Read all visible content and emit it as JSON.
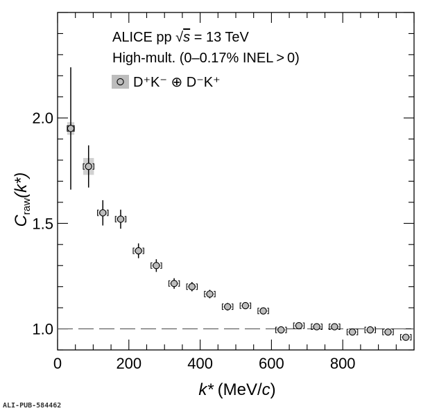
{
  "footer_id": "ALI-PUB-584462",
  "chart_data": {
    "type": "scatter",
    "title": "",
    "xlabel_var": "k*",
    "xlabel_unit_prefix": "(MeV/",
    "xlabel_unit_var": "c",
    "xlabel_unit_suffix": ")",
    "ylabel_var": "C",
    "ylabel_sub": "raw",
    "ylabel_arg": "(k*)",
    "xlim": [
      0,
      1000
    ],
    "ylim": [
      0.9,
      2.5
    ],
    "x_ticks": [
      0,
      200,
      400,
      600,
      800
    ],
    "x_tick_labels": [
      "0",
      "200",
      "400",
      "600",
      "800"
    ],
    "y_ticks": [
      1.0,
      1.5,
      2.0
    ],
    "y_tick_labels": [
      "1.0",
      "1.5",
      "2.0"
    ],
    "reference_line": 1.0,
    "grid": false,
    "annotations": {
      "line1_prefix": "ALICE pp ",
      "line1_sqrt": "s",
      "line1_suffix": " = 13 TeV",
      "line2": "High-mult. (0–0.17% INEL > 0)"
    },
    "legend": {
      "placement": "top-left",
      "entry": "D⁺K⁻ ⊕ D⁻K⁺"
    },
    "colors": {
      "marker_fill": "#bdbdbd",
      "marker_edge": "#000000",
      "syst_box": "#bdbdbd"
    },
    "series": [
      {
        "x": [
          37,
          87,
          127,
          177,
          227,
          277,
          327,
          377,
          427,
          477,
          527,
          577,
          627,
          677,
          727,
          777,
          827,
          877,
          927,
          977
        ],
        "y": [
          1.95,
          1.77,
          1.55,
          1.52,
          1.37,
          1.3,
          1.215,
          1.2,
          1.165,
          1.105,
          1.11,
          1.085,
          0.995,
          1.015,
          1.01,
          1.01,
          0.985,
          0.995,
          0.985,
          0.96
        ],
        "y_err": [
          0.29,
          0.1,
          0.06,
          0.045,
          0.035,
          0.03,
          0.025,
          0.022,
          0.02,
          0.018,
          0.016,
          0.015,
          0.012,
          0.012,
          0.011,
          0.011,
          0.01,
          0.01,
          0.009,
          0.009
        ],
        "x_syst": [
          10,
          15,
          15,
          15,
          15,
          15,
          15,
          15,
          15,
          15,
          15,
          15,
          15,
          15,
          15,
          15,
          15,
          15,
          15,
          15
        ],
        "y_syst": [
          0.03,
          0.04,
          0.01,
          0.01,
          0.008,
          0.006,
          0.005,
          0.005,
          0.005,
          0.004,
          0.004,
          0.004,
          0.004,
          0.004,
          0.004,
          0.004,
          0.004,
          0.004,
          0.004,
          0.004
        ]
      }
    ]
  }
}
